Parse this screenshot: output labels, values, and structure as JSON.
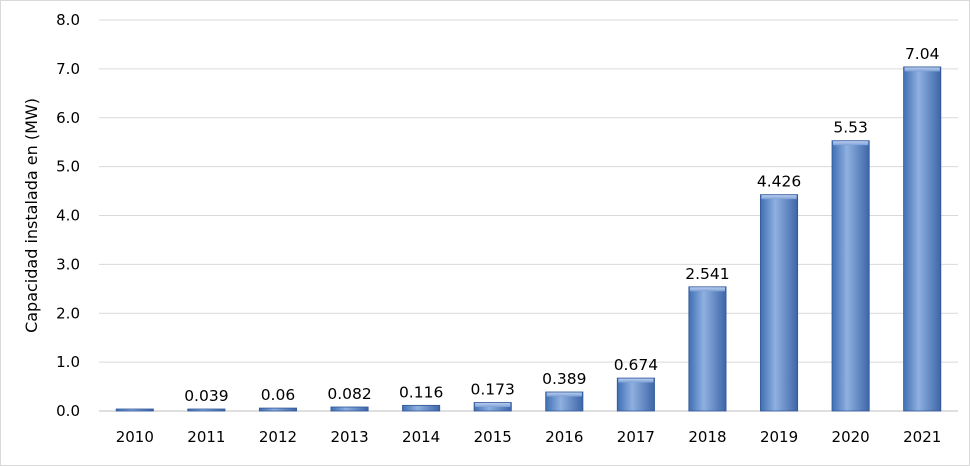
{
  "chart_data": {
    "type": "bar",
    "title": "",
    "xlabel": "",
    "ylabel": "Capacidad instalada en (MW)",
    "categories": [
      "2010",
      "2011",
      "2012",
      "2013",
      "2014",
      "2015",
      "2016",
      "2017",
      "2018",
      "2019",
      "2020",
      "2021"
    ],
    "values": [
      0.0,
      0.039,
      0.06,
      0.082,
      0.116,
      0.173,
      0.389,
      0.674,
      2.541,
      4.426,
      5.53,
      7.04
    ],
    "data_labels": [
      "",
      "0.039",
      "0.06",
      "0.082",
      "0.116",
      "0.173",
      "0.389",
      "0.674",
      "2.541",
      "4.426",
      "5.53",
      "7.04"
    ],
    "ylim": [
      0,
      8
    ],
    "yticks": [
      "0.0",
      "1.0",
      "2.0",
      "3.0",
      "4.0",
      "5.0",
      "6.0",
      "7.0",
      "8.0"
    ],
    "grid": true,
    "legend": "none",
    "colors": {
      "bar": "#4f81bd",
      "bar_light": "#95b3e0",
      "bar_dark": "#2f5597",
      "grid": "#d9d9d9"
    }
  }
}
